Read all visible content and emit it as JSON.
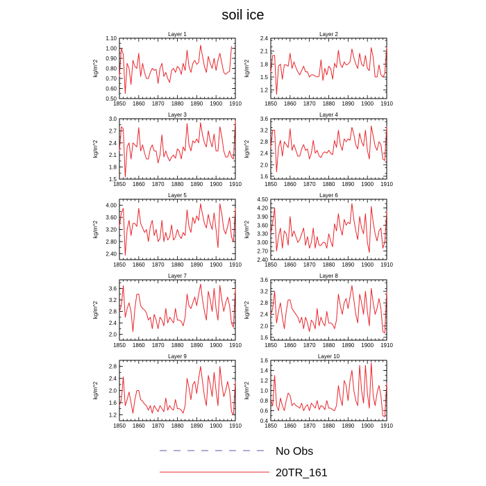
{
  "figure": {
    "title": "soil ice"
  },
  "legend": [
    {
      "label": "No Obs",
      "color": "#5a5aa0",
      "dash": "dashed"
    },
    {
      "label": "20TR_161",
      "color": "#e8242a",
      "dash": "solid"
    }
  ],
  "series_color": "#e8242a",
  "chart_data": [
    {
      "type": "line",
      "title": "Layer 1",
      "ylabel": "kg/m^2",
      "xlim": [
        1850,
        1910
      ],
      "ylim": [
        0.5,
        1.1
      ],
      "xticks": [
        1850,
        1860,
        1870,
        1880,
        1890,
        1900,
        1910
      ],
      "yticks": [
        "0.50",
        "0.60",
        "0.70",
        "0.80",
        "0.90",
        "1.00",
        "1.10"
      ],
      "x_start": 1850,
      "values": [
        0.72,
        1.0,
        0.94,
        0.55,
        0.85,
        0.8,
        0.64,
        0.88,
        0.82,
        0.8,
        0.95,
        0.72,
        0.85,
        0.76,
        0.7,
        0.7,
        0.76,
        0.8,
        0.78,
        0.79,
        0.65,
        0.8,
        0.85,
        0.72,
        0.76,
        0.7,
        0.66,
        0.78,
        0.8,
        0.76,
        0.82,
        0.8,
        0.74,
        0.85,
        0.78,
        0.98,
        0.82,
        0.76,
        0.85,
        0.88,
        0.84,
        0.86,
        1.03,
        0.92,
        0.82,
        0.76,
        0.92,
        0.85,
        0.8,
        0.9,
        0.78,
        0.88,
        0.95,
        0.85,
        0.76,
        0.74,
        0.76,
        0.77,
        1.02
      ]
    },
    {
      "type": "line",
      "title": "Layer 2",
      "ylabel": "kg/m^2",
      "xlim": [
        1850,
        1910
      ],
      "ylim": [
        1.0,
        2.4
      ],
      "xticks": [
        1850,
        1860,
        1870,
        1880,
        1890,
        1900,
        1910
      ],
      "yticks": [
        "1.2",
        "1.5",
        "1.8",
        "2.1",
        "2.4"
      ],
      "x_start": 1850,
      "values": [
        1.6,
        2.0,
        2.0,
        1.1,
        1.75,
        1.8,
        1.45,
        1.78,
        1.78,
        1.75,
        2.05,
        1.7,
        1.85,
        1.72,
        1.62,
        1.55,
        1.65,
        1.75,
        1.62,
        1.62,
        1.5,
        1.55,
        1.55,
        1.52,
        1.5,
        1.52,
        1.9,
        1.42,
        1.7,
        1.55,
        1.75,
        1.7,
        1.45,
        1.82,
        1.72,
        2.12,
        1.8,
        1.72,
        1.85,
        1.78,
        1.8,
        1.85,
        2.15,
        1.95,
        1.8,
        1.7,
        2.05,
        1.8,
        1.75,
        2.0,
        1.7,
        1.65,
        2.18,
        1.95,
        1.5,
        1.5,
        1.78,
        1.55,
        1.5,
        1.58,
        2.2
      ]
    },
    {
      "type": "line",
      "title": "Layer 3",
      "ylabel": "kg/m^2",
      "xlim": [
        1850,
        1910
      ],
      "ylim": [
        1.5,
        3.0
      ],
      "xticks": [
        1850,
        1860,
        1870,
        1880,
        1890,
        1900,
        1910
      ],
      "yticks": [
        "1.5",
        "1.8",
        "2.1",
        "2.4",
        "2.7",
        "3.0"
      ],
      "x_start": 1850,
      "values": [
        2.2,
        2.8,
        2.75,
        1.55,
        2.3,
        2.4,
        2.0,
        2.4,
        2.35,
        2.3,
        2.78,
        2.2,
        2.35,
        2.15,
        2.0,
        2.0,
        2.25,
        2.35,
        2.2,
        2.2,
        1.9,
        2.1,
        2.6,
        2.05,
        2.2,
        2.05,
        1.95,
        2.05,
        2.1,
        2.02,
        2.25,
        2.2,
        2.0,
        2.3,
        2.2,
        2.88,
        2.35,
        2.2,
        2.45,
        2.4,
        2.5,
        2.4,
        2.9,
        2.6,
        2.4,
        2.3,
        2.7,
        2.45,
        2.3,
        2.62,
        2.2,
        2.2,
        2.8,
        2.55,
        2.2,
        2.05,
        2.05,
        2.2,
        2.05,
        2.0,
        2.95
      ]
    },
    {
      "type": "line",
      "title": "Layer 4",
      "ylabel": "kg/m^2",
      "xlim": [
        1850,
        1910
      ],
      "ylim": [
        1.5,
        3.6
      ],
      "xticks": [
        1850,
        1860,
        1870,
        1880,
        1890,
        1900,
        1910
      ],
      "yticks": [
        "1.6",
        "2.0",
        "2.4",
        "2.8",
        "3.2",
        "3.6"
      ],
      "x_start": 1850,
      "values": [
        2.6,
        3.2,
        3.2,
        1.75,
        2.6,
        2.85,
        2.3,
        2.8,
        2.7,
        2.6,
        3.25,
        2.5,
        2.7,
        2.5,
        2.3,
        2.3,
        2.55,
        2.7,
        2.5,
        2.55,
        2.2,
        2.4,
        2.85,
        2.4,
        2.5,
        2.3,
        2.25,
        2.4,
        2.45,
        2.4,
        2.5,
        2.4,
        2.35,
        2.85,
        2.6,
        3.2,
        2.7,
        2.5,
        2.9,
        2.8,
        2.9,
        2.85,
        3.3,
        3.05,
        2.7,
        2.55,
        3.1,
        2.8,
        2.65,
        3.2,
        2.5,
        2.2,
        3.35,
        3.0,
        2.65,
        2.5,
        2.8,
        2.7,
        2.2,
        2.15,
        3.35
      ]
    },
    {
      "type": "line",
      "title": "Layer 5",
      "ylabel": "kg/m^2",
      "xlim": [
        1850,
        1910
      ],
      "ylim": [
        2.2,
        4.2
      ],
      "xticks": [
        1850,
        1860,
        1870,
        1880,
        1890,
        1900,
        1910
      ],
      "yticks": [
        "2.40",
        "2.80",
        "3.20",
        "3.60",
        "4.00"
      ],
      "x_start": 1850,
      "values": [
        3.3,
        3.75,
        3.9,
        2.35,
        3.2,
        3.5,
        3.0,
        3.4,
        3.4,
        3.3,
        3.9,
        3.4,
        3.25,
        3.1,
        3.2,
        2.8,
        3.3,
        3.5,
        3.0,
        3.2,
        2.8,
        2.9,
        3.5,
        2.8,
        3.1,
        2.85,
        2.95,
        3.35,
        2.85,
        2.95,
        3.2,
        3.0,
        2.9,
        3.1,
        3.0,
        3.85,
        3.3,
        3.1,
        3.6,
        3.4,
        3.65,
        3.5,
        4.05,
        3.7,
        3.4,
        3.25,
        3.7,
        3.4,
        3.2,
        3.75,
        3.2,
        2.6,
        4.05,
        3.7,
        3.2,
        3.05,
        3.3,
        3.6,
        2.95,
        2.8,
        3.9
      ]
    },
    {
      "type": "line",
      "title": "Layer 6",
      "ylabel": "kg/m^2",
      "xlim": [
        1850,
        1910
      ],
      "ylim": [
        2.4,
        4.5
      ],
      "xticks": [
        1850,
        1860,
        1870,
        1880,
        1890,
        1900,
        1910
      ],
      "yticks": [
        "2.40",
        "2.70",
        "3.00",
        "3.30",
        "3.60",
        "3.90",
        "4.20",
        "4.50"
      ],
      "x_start": 1850,
      "values": [
        3.3,
        3.7,
        4.2,
        2.7,
        3.2,
        3.5,
        2.8,
        3.4,
        3.3,
        2.9,
        3.9,
        3.2,
        3.4,
        3.2,
        3.0,
        3.1,
        3.3,
        3.5,
        2.9,
        3.2,
        2.8,
        3.0,
        3.5,
        2.8,
        3.2,
        2.9,
        2.9,
        3.0,
        3.0,
        2.8,
        3.3,
        3.05,
        2.85,
        3.65,
        3.4,
        4.0,
        3.5,
        3.25,
        3.8,
        3.6,
        3.7,
        3.65,
        4.35,
        3.8,
        3.4,
        3.1,
        3.9,
        3.5,
        3.3,
        4.0,
        3.0,
        2.65,
        4.25,
        3.7,
        3.3,
        3.05,
        3.4,
        3.5,
        2.8,
        3.0,
        4.1
      ]
    },
    {
      "type": "line",
      "title": "Layer 7",
      "ylabel": "kg/m^2",
      "xlim": [
        1850,
        1910
      ],
      "ylim": [
        1.8,
        3.9
      ],
      "xticks": [
        1850,
        1860,
        1870,
        1880,
        1890,
        1900,
        1910
      ],
      "yticks": [
        "2.0",
        "2.4",
        "2.8",
        "3.2",
        "3.6"
      ],
      "x_start": 1850,
      "values": [
        2.8,
        3.0,
        3.7,
        2.6,
        2.9,
        3.1,
        2.8,
        2.1,
        2.9,
        3.4,
        3.4,
        3.0,
        2.9,
        2.85,
        2.75,
        2.5,
        2.6,
        2.2,
        2.7,
        2.5,
        2.2,
        2.6,
        2.5,
        2.3,
        2.9,
        2.4,
        2.6,
        2.5,
        2.4,
        2.9,
        2.5,
        2.5,
        2.45,
        2.3,
        2.6,
        3.4,
        3.0,
        2.9,
        3.1,
        3.3,
        3.0,
        3.4,
        3.75,
        3.2,
        2.8,
        2.5,
        3.5,
        3.2,
        2.8,
        3.6,
        2.9,
        2.5,
        3.7,
        3.2,
        2.8,
        3.1,
        3.3,
        3.0,
        2.4,
        2.25,
        3.6
      ]
    },
    {
      "type": "line",
      "title": "Layer 8",
      "ylabel": "kg/m^2",
      "xlim": [
        1850,
        1910
      ],
      "ylim": [
        1.5,
        3.6
      ],
      "xticks": [
        1850,
        1860,
        1870,
        1880,
        1890,
        1900,
        1910
      ],
      "yticks": [
        "1.6",
        "2.0",
        "2.4",
        "2.8",
        "3.2",
        "3.6"
      ],
      "x_start": 1850,
      "values": [
        2.4,
        2.6,
        3.2,
        2.1,
        2.5,
        2.8,
        2.3,
        1.9,
        2.5,
        2.9,
        2.9,
        2.6,
        2.5,
        2.4,
        2.3,
        2.1,
        2.3,
        1.9,
        2.3,
        2.1,
        1.8,
        2.2,
        2.1,
        1.9,
        2.6,
        2.0,
        2.3,
        2.1,
        2.0,
        2.5,
        2.1,
        2.1,
        2.05,
        1.9,
        2.2,
        3.1,
        2.7,
        2.4,
        2.8,
        2.95,
        2.6,
        3.0,
        3.4,
        2.9,
        2.4,
        2.1,
        3.1,
        2.8,
        2.4,
        3.2,
        2.5,
        2.0,
        3.3,
        2.8,
        2.4,
        2.6,
        2.95,
        2.6,
        1.8,
        1.75,
        3.2
      ]
    },
    {
      "type": "line",
      "title": "Layer 9",
      "ylabel": "kg/m^2",
      "xlim": [
        1850,
        1910
      ],
      "ylim": [
        1.0,
        3.0
      ],
      "xticks": [
        1850,
        1860,
        1870,
        1880,
        1890,
        1900,
        1910
      ],
      "yticks": [
        "1.2",
        "1.6",
        "2.0",
        "2.4",
        "2.8"
      ],
      "x_start": 1850,
      "values": [
        1.5,
        1.7,
        2.45,
        1.5,
        1.7,
        1.95,
        1.6,
        1.25,
        1.7,
        2.0,
        2.0,
        1.7,
        1.65,
        1.55,
        1.5,
        1.35,
        1.5,
        1.25,
        1.5,
        1.4,
        1.3,
        1.5,
        1.4,
        1.3,
        1.75,
        1.35,
        1.5,
        1.4,
        1.35,
        1.7,
        1.4,
        1.4,
        1.35,
        1.25,
        1.5,
        2.4,
        2.1,
        1.7,
        2.2,
        2.3,
        1.9,
        2.4,
        2.8,
        2.3,
        1.8,
        1.5,
        2.5,
        2.2,
        1.8,
        2.6,
        2.0,
        1.5,
        2.8,
        2.2,
        1.8,
        2.0,
        2.3,
        2.0,
        1.3,
        1.2,
        2.3
      ]
    },
    {
      "type": "line",
      "title": "Layer 10",
      "ylabel": "kg/m^2",
      "xlim": [
        1850,
        1910
      ],
      "ylim": [
        0.4,
        1.6
      ],
      "xticks": [
        1850,
        1860,
        1870,
        1880,
        1890,
        1900,
        1910
      ],
      "yticks": [
        "0.4",
        "0.6",
        "0.8",
        "1.0",
        "1.2",
        "1.4",
        "1.6"
      ],
      "x_start": 1850,
      "values": [
        0.8,
        0.7,
        1.3,
        0.7,
        0.6,
        0.85,
        0.7,
        0.6,
        0.8,
        0.95,
        0.9,
        0.7,
        0.75,
        0.7,
        0.68,
        0.65,
        0.75,
        0.6,
        0.68,
        0.72,
        0.6,
        0.75,
        0.7,
        0.65,
        0.8,
        0.62,
        0.7,
        0.68,
        0.62,
        0.8,
        0.65,
        0.65,
        0.62,
        0.6,
        0.7,
        1.1,
        0.85,
        0.7,
        1.2,
        1.1,
        0.8,
        1.2,
        1.4,
        1.0,
        0.8,
        0.7,
        1.5,
        1.0,
        0.75,
        1.5,
        0.95,
        0.65,
        1.55,
        0.9,
        0.7,
        0.95,
        1.1,
        0.9,
        0.5,
        0.48,
        1.15
      ]
    }
  ]
}
